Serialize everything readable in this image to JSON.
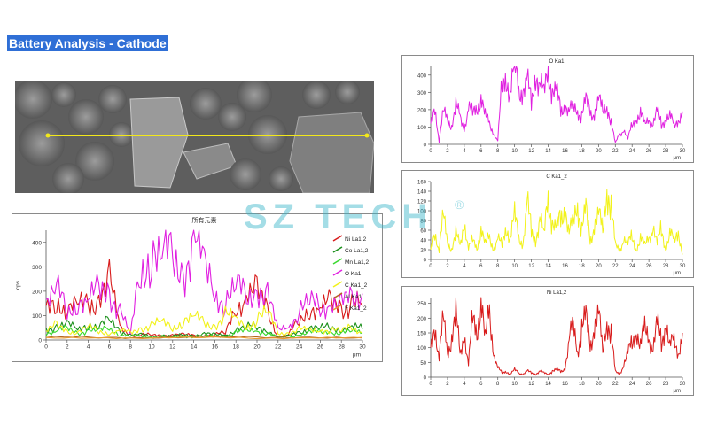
{
  "page_title": "Battery Analysis - Cathode",
  "watermark": {
    "text": "SZ TECH",
    "registered": "®",
    "color": "#38b4c9"
  },
  "sem_image": {
    "description_icon": "sem-micrograph",
    "scan_line_color": "#f2e81a"
  },
  "chart_data": [
    {
      "type": "line",
      "title": "所有元素",
      "ylabel": "cps",
      "xlabel": "μm",
      "xlim": [
        0,
        30
      ],
      "ylim": [
        0,
        450
      ],
      "x_ticks": [
        0,
        2,
        4,
        6,
        8,
        10,
        12,
        14,
        16,
        18,
        20,
        22,
        24,
        26,
        28,
        30
      ],
      "y_ticks": [
        0,
        100,
        200,
        300,
        400
      ],
      "legend_position": "right",
      "series": [
        {
          "name": "Ni La1,2",
          "color": "#d81b1b",
          "x": [
            0,
            1,
            2,
            3,
            4,
            5,
            6,
            7,
            8,
            9,
            10,
            11,
            12,
            13,
            14,
            15,
            16,
            17,
            18,
            19,
            20,
            21,
            22,
            23,
            24,
            25,
            26,
            27,
            28,
            29,
            30
          ],
          "values": [
            140,
            180,
            110,
            140,
            170,
            160,
            230,
            60,
            20,
            20,
            20,
            20,
            20,
            20,
            20,
            20,
            20,
            30,
            150,
            160,
            190,
            140,
            10,
            20,
            80,
            140,
            120,
            150,
            140,
            160,
            140
          ]
        },
        {
          "name": "Co La1,2",
          "color": "#1a8f1a",
          "x": [
            0,
            1,
            2,
            3,
            4,
            5,
            6,
            7,
            8,
            9,
            10,
            11,
            12,
            13,
            14,
            15,
            16,
            17,
            18,
            19,
            20,
            21,
            22,
            23,
            24,
            25,
            26,
            27,
            28,
            29,
            30
          ],
          "values": [
            50,
            55,
            60,
            45,
            70,
            50,
            80,
            40,
            20,
            20,
            15,
            20,
            15,
            20,
            20,
            25,
            20,
            20,
            45,
            50,
            55,
            40,
            10,
            15,
            35,
            50,
            45,
            55,
            45,
            50,
            45
          ]
        },
        {
          "name": "Mn La1,2",
          "color": "#39d92e",
          "x": [
            0,
            1,
            2,
            3,
            4,
            5,
            6,
            7,
            8,
            9,
            10,
            11,
            12,
            13,
            14,
            15,
            16,
            17,
            18,
            19,
            20,
            21,
            22,
            23,
            24,
            25,
            26,
            27,
            28,
            29,
            30
          ],
          "values": [
            30,
            35,
            45,
            30,
            40,
            35,
            50,
            25,
            15,
            15,
            10,
            15,
            10,
            15,
            15,
            15,
            15,
            15,
            30,
            35,
            40,
            30,
            10,
            10,
            25,
            30,
            30,
            35,
            30,
            35,
            30
          ]
        },
        {
          "name": "O Ka1",
          "color": "#e020e0",
          "x": [
            0,
            1,
            2,
            3,
            4,
            5,
            6,
            7,
            8,
            9,
            10,
            11,
            12,
            13,
            14,
            15,
            16,
            17,
            18,
            19,
            20,
            21,
            22,
            23,
            24,
            25,
            26,
            27,
            28,
            29,
            30
          ],
          "values": [
            150,
            200,
            120,
            170,
            150,
            200,
            210,
            120,
            20,
            300,
            390,
            320,
            340,
            290,
            410,
            290,
            210,
            160,
            210,
            180,
            220,
            170,
            40,
            60,
            120,
            150,
            140,
            160,
            140,
            160,
            190
          ]
        },
        {
          "name": "C Ka1_2",
          "color": "#f2f21a",
          "x": [
            0,
            1,
            2,
            3,
            4,
            5,
            6,
            7,
            8,
            9,
            10,
            11,
            12,
            13,
            14,
            15,
            16,
            17,
            18,
            19,
            20,
            21,
            22,
            23,
            24,
            25,
            26,
            27,
            28,
            29,
            30
          ],
          "values": [
            30,
            60,
            40,
            30,
            50,
            40,
            30,
            35,
            30,
            50,
            60,
            70,
            55,
            80,
            90,
            70,
            60,
            100,
            80,
            60,
            90,
            110,
            30,
            30,
            40,
            40,
            45,
            40,
            35,
            60,
            30
          ]
        },
        {
          "name": "Al Ka1",
          "color": "#b5651d",
          "x": [
            0,
            5,
            10,
            15,
            20,
            25,
            30
          ],
          "values": [
            10,
            12,
            10,
            12,
            10,
            12,
            10
          ]
        },
        {
          "name": "F Ka1_2",
          "color": "#e89a30",
          "x": [
            0,
            5,
            10,
            15,
            20,
            25,
            30
          ],
          "values": [
            8,
            10,
            8,
            10,
            8,
            10,
            8
          ]
        }
      ]
    },
    {
      "type": "line",
      "title": "O Ka1",
      "xlabel": "μm",
      "xlim": [
        0,
        30
      ],
      "ylim": [
        0,
        450
      ],
      "x_ticks": [
        0,
        2,
        4,
        6,
        8,
        10,
        12,
        14,
        16,
        18,
        20,
        22,
        24,
        26,
        28,
        30
      ],
      "y_ticks": [
        0,
        100,
        200,
        300,
        400
      ],
      "series": [
        {
          "name": "O Ka1",
          "color": "#e020e0",
          "x": [
            0,
            0.5,
            1,
            1.5,
            2,
            2.5,
            3,
            3.5,
            4,
            4.5,
            5,
            5.5,
            6,
            6.5,
            7,
            7.5,
            8,
            8.5,
            9,
            9.5,
            10,
            10.5,
            11,
            11.5,
            12,
            12.5,
            13,
            13.5,
            14,
            14.5,
            15,
            15.5,
            16,
            16.5,
            17,
            17.5,
            18,
            18.5,
            19,
            19.5,
            20,
            20.5,
            21,
            21.5,
            22,
            22.5,
            23,
            23.5,
            24,
            24.5,
            25,
            25.5,
            26,
            26.5,
            27,
            27.5,
            28,
            28.5,
            29,
            29.5,
            30
          ],
          "values": [
            120,
            230,
            10,
            190,
            160,
            100,
            210,
            170,
            90,
            200,
            180,
            220,
            260,
            160,
            130,
            60,
            20,
            350,
            400,
            280,
            460,
            330,
            300,
            360,
            240,
            420,
            330,
            300,
            450,
            290,
            300,
            200,
            230,
            180,
            220,
            200,
            160,
            250,
            200,
            170,
            250,
            200,
            230,
            120,
            10,
            60,
            80,
            30,
            120,
            150,
            170,
            120,
            150,
            110,
            190,
            120,
            150,
            160,
            110,
            140,
            190
          ]
        }
      ]
    },
    {
      "type": "line",
      "title": "C Ka1_2",
      "xlabel": "μm",
      "xlim": [
        0,
        30
      ],
      "ylim": [
        0,
        160
      ],
      "x_ticks": [
        0,
        2,
        4,
        6,
        8,
        10,
        12,
        14,
        16,
        18,
        20,
        22,
        24,
        26,
        28,
        30
      ],
      "y_ticks": [
        0,
        20,
        40,
        60,
        80,
        100,
        120,
        140,
        160
      ],
      "series": [
        {
          "name": "C Ka1_2",
          "color": "#f2f21a",
          "x": [
            0,
            0.5,
            1,
            1.5,
            2,
            2.5,
            3,
            3.5,
            4,
            4.5,
            5,
            5.5,
            6,
            6.5,
            7,
            7.5,
            8,
            8.5,
            9,
            9.5,
            10,
            10.5,
            11,
            11.5,
            12,
            12.5,
            13,
            13.5,
            14,
            14.5,
            15,
            15.5,
            16,
            16.5,
            17,
            17.5,
            18,
            18.5,
            19,
            19.5,
            20,
            20.5,
            21,
            21.5,
            22,
            22.5,
            23,
            23.5,
            24,
            24.5,
            25,
            25.5,
            26,
            26.5,
            27,
            27.5,
            28,
            28.5,
            29,
            29.5,
            30
          ],
          "values": [
            20,
            60,
            15,
            90,
            40,
            20,
            50,
            30,
            80,
            20,
            40,
            25,
            60,
            30,
            50,
            20,
            40,
            30,
            70,
            40,
            90,
            50,
            30,
            110,
            60,
            40,
            80,
            50,
            140,
            70,
            60,
            90,
            110,
            50,
            80,
            120,
            60,
            100,
            40,
            70,
            90,
            60,
            155,
            100,
            30,
            20,
            40,
            30,
            50,
            20,
            40,
            30,
            50,
            60,
            30,
            70,
            20,
            50,
            40,
            60,
            10
          ]
        }
      ]
    },
    {
      "type": "line",
      "title": "Ni La1,2",
      "xlabel": "μm",
      "xlim": [
        0,
        30
      ],
      "ylim": [
        0,
        270
      ],
      "x_ticks": [
        0,
        2,
        4,
        6,
        8,
        10,
        12,
        14,
        16,
        18,
        20,
        22,
        24,
        26,
        28,
        30
      ],
      "y_ticks": [
        0,
        50,
        100,
        150,
        200,
        250
      ],
      "series": [
        {
          "name": "Ni La1,2",
          "color": "#d81b1b",
          "x": [
            0,
            0.5,
            1,
            1.5,
            2,
            2.5,
            3,
            3.5,
            4,
            4.5,
            5,
            5.5,
            6,
            6.5,
            7,
            7.5,
            8,
            8.5,
            9,
            9.5,
            10,
            10.5,
            11,
            11.5,
            12,
            12.5,
            13,
            13.5,
            14,
            14.5,
            15,
            15.5,
            16,
            16.5,
            17,
            17.5,
            18,
            18.5,
            19,
            19.5,
            20,
            20.5,
            21,
            21.5,
            22,
            22.5,
            23,
            23.5,
            24,
            24.5,
            25,
            25.5,
            26,
            26.5,
            27,
            27.5,
            28,
            28.5,
            29,
            29.5,
            30
          ],
          "values": [
            100,
            180,
            60,
            200,
            90,
            130,
            210,
            80,
            150,
            40,
            200,
            160,
            260,
            120,
            240,
            80,
            30,
            15,
            20,
            10,
            25,
            15,
            10,
            20,
            15,
            10,
            20,
            15,
            10,
            20,
            25,
            20,
            30,
            120,
            180,
            90,
            160,
            200,
            110,
            170,
            210,
            90,
            200,
            140,
            20,
            10,
            40,
            80,
            120,
            160,
            100,
            170,
            140,
            90,
            180,
            120,
            190,
            100,
            130,
            80,
            150
          ]
        }
      ]
    }
  ]
}
